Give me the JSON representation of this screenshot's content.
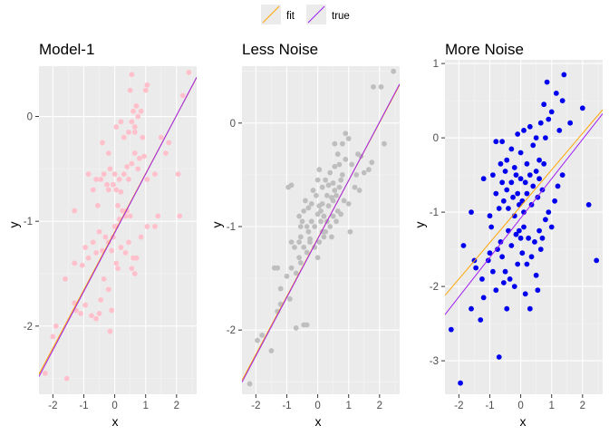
{
  "legend": {
    "items": [
      {
        "label": "fit",
        "color": "#FFA500"
      },
      {
        "label": "true",
        "color": "#A020F0"
      }
    ]
  },
  "chart_data": [
    {
      "type": "scatter",
      "title": "Model-1",
      "xlabel": "x",
      "ylabel": "y",
      "xlim": [
        -2.45,
        2.65
      ],
      "ylim": [
        -2.65,
        0.48
      ],
      "xticks": [
        -2,
        -1,
        0,
        1,
        2
      ],
      "yticks": [
        -2,
        -1,
        0
      ],
      "point_color": "#FFC0CB",
      "points": [
        [
          -2.25,
          -2.45
        ],
        [
          -1.55,
          -2.5
        ],
        [
          -2.0,
          -2.1
        ],
        [
          -1.9,
          -2.0
        ],
        [
          -1.6,
          -1.55
        ],
        [
          -1.3,
          -1.78
        ],
        [
          -1.25,
          -1.85
        ],
        [
          -1.1,
          -1.88
        ],
        [
          -0.95,
          -1.8
        ],
        [
          -0.75,
          -1.9
        ],
        [
          -0.6,
          -1.93
        ],
        [
          -0.5,
          -1.88
        ],
        [
          -0.45,
          -1.75
        ],
        [
          -0.35,
          -1.55
        ],
        [
          -0.2,
          -1.65
        ],
        [
          -0.15,
          -2.05
        ],
        [
          -0.1,
          -1.85
        ],
        [
          0.05,
          -1.4
        ],
        [
          0.1,
          -1.45
        ],
        [
          0.2,
          -1.25
        ],
        [
          0.35,
          -1.3
        ],
        [
          0.45,
          -1.2
        ],
        [
          0.55,
          -1.45
        ],
        [
          0.6,
          -1.35
        ],
        [
          0.65,
          -1.5
        ],
        [
          0.7,
          -1.35
        ],
        [
          0.85,
          -1.15
        ],
        [
          1.05,
          -1.05
        ],
        [
          1.3,
          -1.05
        ],
        [
          1.4,
          -0.95
        ],
        [
          -1.3,
          -0.9
        ],
        [
          -1.3,
          -1.4
        ],
        [
          -1.05,
          -1.42
        ],
        [
          -0.95,
          -1.25
        ],
        [
          -0.85,
          -1.35
        ],
        [
          -0.7,
          -1.2
        ],
        [
          -0.6,
          -1.3
        ],
        [
          -0.5,
          -1.1
        ],
        [
          -0.4,
          -1.28
        ],
        [
          -0.3,
          -1.15
        ],
        [
          -0.2,
          -1.2
        ],
        [
          -0.1,
          -1.28
        ],
        [
          -0.05,
          -1.15
        ],
        [
          0.0,
          -1.05
        ],
        [
          0.05,
          -1.05
        ],
        [
          0.15,
          -0.98
        ],
        [
          0.25,
          -0.9
        ],
        [
          0.35,
          -0.95
        ],
        [
          0.4,
          -0.9
        ],
        [
          0.5,
          -0.95
        ],
        [
          -0.85,
          -0.55
        ],
        [
          -0.7,
          -0.7
        ],
        [
          -0.6,
          -0.6
        ],
        [
          -0.55,
          -0.85
        ],
        [
          -0.45,
          -0.6
        ],
        [
          -0.35,
          -0.55
        ],
        [
          -0.25,
          -0.65
        ],
        [
          -0.2,
          -0.7
        ],
        [
          -0.15,
          -0.5
        ],
        [
          -0.05,
          -0.65
        ],
        [
          0.0,
          -0.55
        ],
        [
          0.05,
          -0.7
        ],
        [
          0.1,
          -0.85
        ],
        [
          0.15,
          -0.6
        ],
        [
          0.2,
          -0.72
        ],
        [
          0.3,
          -0.55
        ],
        [
          0.4,
          -0.48
        ],
        [
          0.45,
          -0.6
        ],
        [
          0.55,
          -0.45
        ],
        [
          0.65,
          -0.35
        ],
        [
          0.75,
          -0.5
        ],
        [
          0.8,
          -0.4
        ],
        [
          0.95,
          -0.38
        ],
        [
          1.05,
          -0.6
        ],
        [
          1.3,
          -0.55
        ],
        [
          1.5,
          -0.2
        ],
        [
          1.65,
          -0.35
        ],
        [
          1.75,
          -0.25
        ],
        [
          2.05,
          -0.55
        ],
        [
          2.1,
          -0.95
        ],
        [
          -0.4,
          -0.25
        ],
        [
          -0.2,
          -0.35
        ],
        [
          0.05,
          -0.1
        ],
        [
          0.2,
          -0.05
        ],
        [
          0.3,
          -0.2
        ],
        [
          0.45,
          -0.15
        ],
        [
          0.55,
          -0.05
        ],
        [
          0.65,
          -0.15
        ],
        [
          0.7,
          0.1
        ],
        [
          0.9,
          -0.2
        ],
        [
          0.6,
          0.05
        ],
        [
          0.75,
          0.0
        ],
        [
          0.5,
          0.25
        ],
        [
          0.65,
          -0.1
        ],
        [
          0.55,
          0.4
        ],
        [
          0.85,
          0.05
        ],
        [
          1.0,
          0.25
        ],
        [
          1.05,
          0.3
        ],
        [
          2.2,
          0.2
        ],
        [
          2.4,
          0.42
        ]
      ],
      "fit_line": {
        "intercept": -1.1,
        "slope": 0.555
      },
      "true_line": {
        "intercept": -1.11,
        "slope": 0.56
      }
    },
    {
      "type": "scatter",
      "title": "Less Noise",
      "xlabel": "x",
      "ylabel": "y",
      "xlim": [
        -2.45,
        2.65
      ],
      "ylim": [
        -2.62,
        0.55
      ],
      "xticks": [
        -2,
        -1,
        0,
        1,
        2
      ],
      "yticks": [
        -2,
        -1,
        0
      ],
      "point_color": "#BEBEBE",
      "points": [
        [
          -2.2,
          -2.52
        ],
        [
          -1.95,
          -2.1
        ],
        [
          -1.8,
          -2.05
        ],
        [
          -1.5,
          -2.2
        ],
        [
          -1.2,
          -1.6
        ],
        [
          -1.2,
          -1.75
        ],
        [
          -1.3,
          -1.82
        ],
        [
          -0.9,
          -1.7
        ],
        [
          -0.7,
          -1.98
        ],
        [
          -0.45,
          -1.95
        ],
        [
          -0.35,
          -1.95
        ],
        [
          -1.3,
          -1.4
        ],
        [
          -1.0,
          -1.48
        ],
        [
          -0.85,
          -1.4
        ],
        [
          -0.7,
          -1.45
        ],
        [
          -0.6,
          -1.3
        ],
        [
          -0.55,
          -1.35
        ],
        [
          -0.45,
          -1.2
        ],
        [
          -0.35,
          -1.25
        ],
        [
          -0.25,
          -1.15
        ],
        [
          -0.1,
          -1.2
        ],
        [
          0.0,
          -1.3
        ],
        [
          0.05,
          -1.15
        ],
        [
          0.15,
          -1.05
        ],
        [
          0.25,
          -1.05
        ],
        [
          0.3,
          -0.95
        ],
        [
          0.4,
          -1.0
        ],
        [
          0.5,
          -0.9
        ],
        [
          0.6,
          -0.95
        ],
        [
          0.65,
          -0.85
        ],
        [
          0.75,
          -0.88
        ],
        [
          0.85,
          -0.75
        ],
        [
          1.0,
          -0.78
        ],
        [
          1.05,
          -1.05
        ],
        [
          1.2,
          -0.62
        ],
        [
          1.35,
          -0.65
        ],
        [
          1.5,
          -0.48
        ],
        [
          1.65,
          -0.45
        ],
        [
          1.75,
          -0.38
        ],
        [
          2.15,
          -0.2
        ],
        [
          -0.85,
          -1.15
        ],
        [
          -0.75,
          -1.2
        ],
        [
          -0.6,
          -1.15
        ],
        [
          -0.55,
          -1.1
        ],
        [
          -0.5,
          -0.95
        ],
        [
          -0.35,
          -1.0
        ],
        [
          -0.3,
          -1.05
        ],
        [
          -0.2,
          -0.95
        ],
        [
          -0.1,
          -1.0
        ],
        [
          0.0,
          -0.88
        ],
        [
          0.05,
          -0.8
        ],
        [
          0.1,
          -0.85
        ],
        [
          0.15,
          -0.78
        ],
        [
          0.2,
          -0.9
        ],
        [
          0.3,
          -0.7
        ],
        [
          0.35,
          -0.8
        ],
        [
          0.45,
          -0.72
        ],
        [
          0.5,
          -0.75
        ],
        [
          0.55,
          -0.65
        ],
        [
          0.6,
          -0.7
        ],
        [
          -0.95,
          -0.62
        ],
        [
          -0.85,
          -0.6
        ],
        [
          -0.6,
          -0.9
        ],
        [
          -0.45,
          -0.85
        ],
        [
          -0.4,
          -0.75
        ],
        [
          -0.3,
          -0.82
        ],
        [
          -0.2,
          -0.78
        ],
        [
          -0.15,
          -0.65
        ],
        [
          -0.05,
          -0.7
        ],
        [
          0.0,
          -0.55
        ],
        [
          0.05,
          -0.45
        ],
        [
          0.15,
          -0.62
        ],
        [
          0.25,
          -0.55
        ],
        [
          0.35,
          -0.6
        ],
        [
          0.4,
          -0.48
        ],
        [
          0.5,
          -0.58
        ],
        [
          0.55,
          -0.42
        ],
        [
          0.7,
          -0.4
        ],
        [
          0.8,
          -0.5
        ],
        [
          0.9,
          -0.35
        ],
        [
          -0.55,
          -1.0
        ],
        [
          -0.25,
          -1.12
        ],
        [
          0.1,
          -0.95
        ],
        [
          0.2,
          -1.1
        ],
        [
          0.45,
          -1.1
        ],
        [
          0.7,
          -0.62
        ],
        [
          0.75,
          -0.55
        ],
        [
          1.1,
          -0.4
        ],
        [
          1.25,
          -0.5
        ],
        [
          1.4,
          -0.32
        ],
        [
          0.65,
          -0.3
        ],
        [
          0.8,
          -0.2
        ],
        [
          0.55,
          -0.2
        ],
        [
          0.9,
          -0.1
        ],
        [
          1.0,
          -0.15
        ],
        [
          1.3,
          -0.3
        ],
        [
          1.8,
          0.35
        ],
        [
          2.05,
          0.35
        ],
        [
          2.45,
          0.5
        ],
        [
          -1.4,
          -1.4
        ]
      ],
      "fit_line": {
        "intercept": -1.115,
        "slope": 0.56
      },
      "true_line": {
        "intercept": -1.12,
        "slope": 0.565
      }
    },
    {
      "type": "scatter",
      "title": "More Noise",
      "xlabel": "x",
      "ylabel": "y",
      "xlim": [
        -2.45,
        2.65
      ],
      "ylim": [
        -3.45,
        1.05
      ],
      "xticks": [
        -2,
        -1,
        0,
        1,
        2
      ],
      "yticks": [
        -3,
        -2,
        -1,
        0,
        1
      ],
      "point_color": "#0000EE",
      "points": [
        [
          -2.25,
          -2.58
        ],
        [
          -1.95,
          -3.3
        ],
        [
          -1.85,
          -1.45
        ],
        [
          -1.6,
          -2.3
        ],
        [
          -1.5,
          -1.65
        ],
        [
          -1.45,
          -1.75
        ],
        [
          -1.3,
          -2.45
        ],
        [
          -1.25,
          -1.9
        ],
        [
          -1.2,
          -2.15
        ],
        [
          -1.05,
          -1.65
        ],
        [
          -1.0,
          -1.55
        ],
        [
          -0.95,
          -1.2
        ],
        [
          -0.9,
          -1.8
        ],
        [
          -0.8,
          -2.05
        ],
        [
          -0.75,
          -1.5
        ],
        [
          -0.7,
          -2.95
        ],
        [
          -0.65,
          -1.4
        ],
        [
          -0.6,
          -1.6
        ],
        [
          -0.55,
          -1.95
        ],
        [
          -0.5,
          -1.8
        ],
        [
          -0.45,
          -2.3
        ],
        [
          -0.4,
          -1.25
        ],
        [
          -0.35,
          -1.9
        ],
        [
          -0.3,
          -1.45
        ],
        [
          -0.2,
          -2.0
        ],
        [
          -0.15,
          -1.3
        ],
        [
          -0.1,
          -1.7
        ],
        [
          -0.05,
          -1.25
        ],
        [
          0.0,
          -1.35
        ],
        [
          0.05,
          -1.55
        ],
        [
          0.1,
          -1.2
        ],
        [
          0.15,
          -2.1
        ],
        [
          0.2,
          -1.7
        ],
        [
          0.25,
          -1.35
        ],
        [
          0.3,
          -2.3
        ],
        [
          0.35,
          -1.6
        ],
        [
          0.45,
          -1.4
        ],
        [
          0.5,
          -1.85
        ],
        [
          0.55,
          -2.05
        ],
        [
          0.6,
          -1.25
        ],
        [
          0.65,
          -1.5
        ],
        [
          0.7,
          -1.35
        ],
        [
          0.8,
          -1.1
        ],
        [
          0.9,
          -1.0
        ],
        [
          1.0,
          -1.2
        ],
        [
          1.1,
          -0.85
        ],
        [
          1.2,
          -0.65
        ],
        [
          1.35,
          -0.5
        ],
        [
          2.2,
          -0.9
        ],
        [
          2.45,
          -1.65
        ],
        [
          -1.6,
          -1.0
        ],
        [
          -1.2,
          -0.55
        ],
        [
          -1.0,
          -1.05
        ],
        [
          -0.9,
          -0.5
        ],
        [
          -0.8,
          -0.75
        ],
        [
          -0.7,
          -0.95
        ],
        [
          -0.6,
          -0.6
        ],
        [
          -0.55,
          -0.85
        ],
        [
          -0.5,
          -0.45
        ],
        [
          -0.45,
          -0.7
        ],
        [
          -0.4,
          -0.95
        ],
        [
          -0.3,
          -0.6
        ],
        [
          -0.25,
          -0.8
        ],
        [
          -0.2,
          -1.05
        ],
        [
          -0.15,
          -0.5
        ],
        [
          -0.1,
          -0.75
        ],
        [
          -0.05,
          -0.9
        ],
        [
          0.0,
          -0.55
        ],
        [
          0.05,
          -0.85
        ],
        [
          0.1,
          -1.0
        ],
        [
          0.15,
          -0.6
        ],
        [
          0.2,
          -0.75
        ],
        [
          0.3,
          -0.5
        ],
        [
          0.35,
          -0.9
        ],
        [
          0.4,
          -0.65
        ],
        [
          0.5,
          -0.45
        ],
        [
          0.55,
          -0.8
        ],
        [
          0.6,
          -0.55
        ],
        [
          0.7,
          -0.7
        ],
        [
          0.75,
          -0.35
        ],
        [
          -0.8,
          -0.05
        ],
        [
          -0.65,
          -0.35
        ],
        [
          -0.6,
          -0.05
        ],
        [
          -0.45,
          -0.3
        ],
        [
          -0.3,
          -0.15
        ],
        [
          -0.2,
          -0.4
        ],
        [
          -0.1,
          0.05
        ],
        [
          0.0,
          -0.2
        ],
        [
          0.1,
          0.1
        ],
        [
          0.2,
          -0.35
        ],
        [
          0.3,
          0.15
        ],
        [
          0.4,
          -0.1
        ],
        [
          0.5,
          0.0
        ],
        [
          0.6,
          -0.3
        ],
        [
          0.65,
          0.2
        ],
        [
          0.75,
          0.45
        ],
        [
          0.8,
          0.0
        ],
        [
          0.85,
          0.75
        ],
        [
          1.0,
          0.35
        ],
        [
          1.15,
          0.6
        ],
        [
          1.25,
          0.1
        ],
        [
          1.35,
          0.5
        ],
        [
          1.4,
          0.85
        ],
        [
          1.6,
          0.2
        ],
        [
          2.0,
          0.4
        ],
        [
          0.9,
          0.25
        ]
      ],
      "fit_line": {
        "intercept": -0.92,
        "slope": 0.49
      },
      "true_line": {
        "intercept": -1.08,
        "slope": 0.53
      }
    }
  ]
}
